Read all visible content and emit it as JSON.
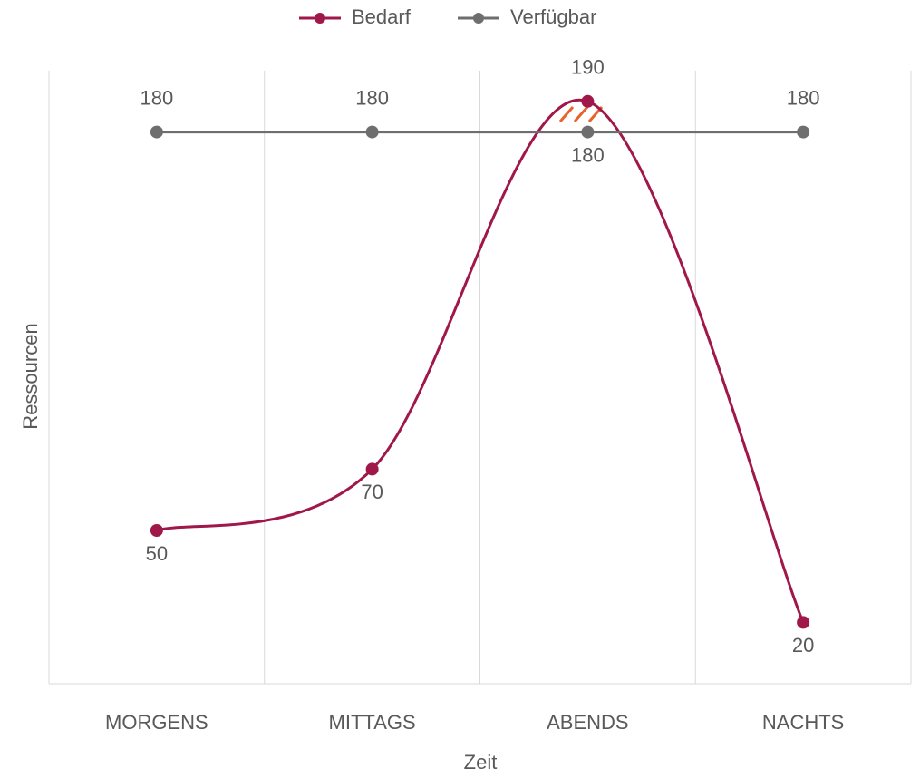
{
  "chart_data": {
    "type": "line",
    "x_label": "Zeit",
    "y_label": "Ressourcen",
    "categories": [
      "MORGENS",
      "MITTAGS",
      "ABENDS",
      "NACHTS"
    ],
    "series": [
      {
        "name": "Bedarf",
        "color": "#a0174a",
        "values": [
          50,
          70,
          190,
          20
        ]
      },
      {
        "name": "Verfügbar",
        "color": "#6e6e6e",
        "values": [
          180,
          180,
          180,
          180
        ]
      }
    ],
    "ylim": [
      0,
      200
    ],
    "smooth": true,
    "legend": "top"
  }
}
